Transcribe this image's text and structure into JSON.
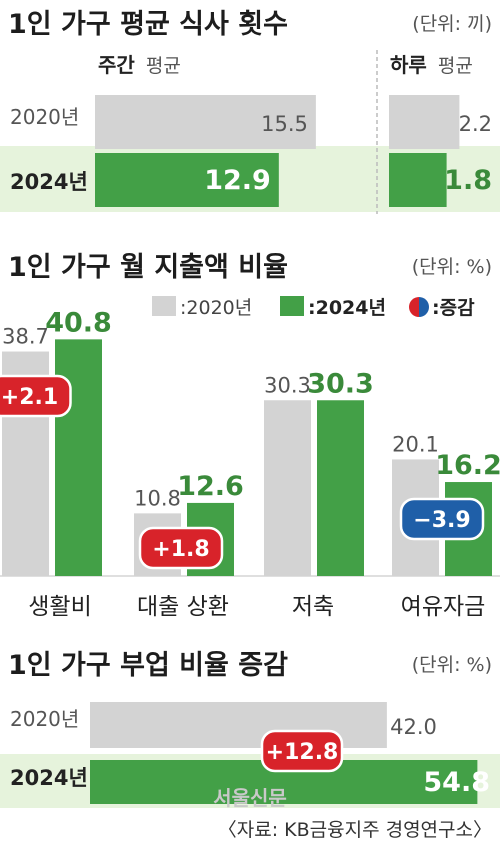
{
  "colors": {
    "gray": "#d3d3d3",
    "green": "#43a047",
    "green_band": "#e6f3dc",
    "red": "#d8232a",
    "blue": "#1f5fa8"
  },
  "chart_data": [
    {
      "type": "bar",
      "title": "1인 가구 평균 식사 횟수",
      "unit": "(단위: 끼)",
      "groups": [
        {
          "label": "주간 평균",
          "label_bold": "주간",
          "label_light": "평균",
          "max": 16
        },
        {
          "label": "하루 평균",
          "label_bold": "하루",
          "label_light": "평균",
          "max": 2.5
        }
      ],
      "categories": [
        "2020년",
        "2024년"
      ],
      "series": [
        {
          "name": "주간 평균",
          "values": [
            15.5,
            12.9
          ]
        },
        {
          "name": "하루 평균",
          "values": [
            2.2,
            1.8
          ]
        }
      ]
    },
    {
      "type": "bar",
      "title": "1인 가구 월 지출액 비율",
      "unit": "(단위: %)",
      "legend": {
        "y2020": ":2020년",
        "y2024": ":2024년",
        "change": ":증감"
      },
      "categories": [
        "생활비",
        "대출 상환",
        "저축",
        "여유자금"
      ],
      "series": [
        {
          "name": "2020년",
          "values": [
            38.7,
            10.8,
            30.3,
            20.1
          ]
        },
        {
          "name": "2024년",
          "values": [
            40.8,
            12.6,
            30.3,
            16.2
          ]
        }
      ],
      "changes": [
        "+2.1",
        "+1.8",
        null,
        "-3.9"
      ],
      "change_labels": [
        "+2.1",
        "+1.8",
        "",
        "−3.9"
      ]
    },
    {
      "type": "bar",
      "title": "1인 가구 부업 비율 증감",
      "unit": "(단위: %)",
      "categories": [
        "2020년",
        "2024년"
      ],
      "values": [
        42.0,
        54.8
      ],
      "value_labels": [
        "42.0",
        "54.8"
      ],
      "change": "+12.8",
      "max": 58
    }
  ],
  "watermark": "서울신문",
  "source": "〈자료: KB금융지주 경영연구소〉"
}
